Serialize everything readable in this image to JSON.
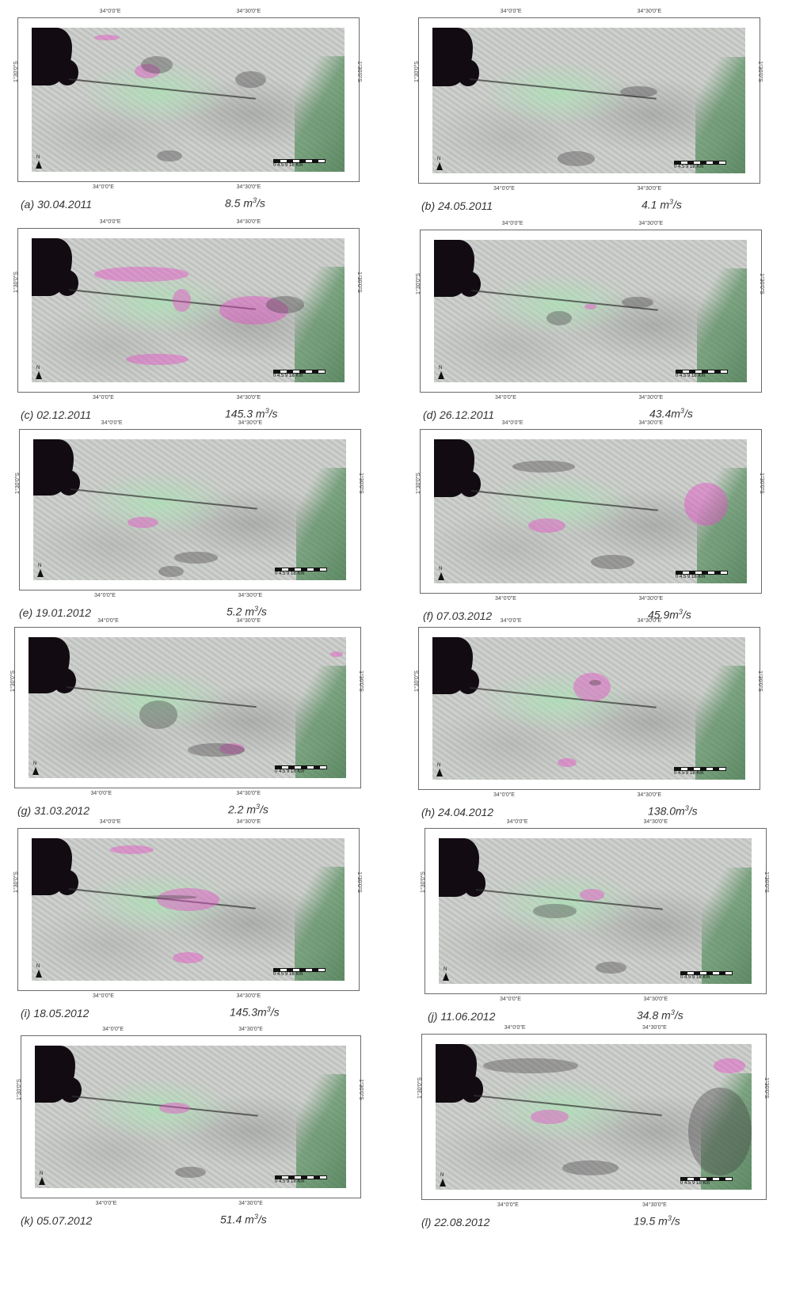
{
  "axis_labels": {
    "lon_left": "34°0'0\"E",
    "lon_right": "34°30'0\"E",
    "lat": "1°30'0\"S",
    "north": "N",
    "scale": "0  4.5  9        18 Km"
  },
  "panels": [
    {
      "label": "(a) 30.04.2011",
      "flow": "8.5 m",
      "flow_unit": "3",
      "flow_tail": "/s"
    },
    {
      "label": "(b) 24.05.2011",
      "flow": "4.1 m",
      "flow_unit": "3",
      "flow_tail": "/s"
    },
    {
      "label": "(c) 02.12.2011",
      "flow": "145.3 m",
      "flow_unit": "3",
      "flow_tail": "/s"
    },
    {
      "label": "(d) 26.12.2011",
      "flow": "43.4m",
      "flow_unit": "3",
      "flow_tail": "/s"
    },
    {
      "label": "(e) 19.01.2012",
      "flow": "5.2 m",
      "flow_unit": "3",
      "flow_tail": "/s"
    },
    {
      "label": "(f)   07.03.2012",
      "flow": "45.9m",
      "flow_unit": "3",
      "flow_tail": "/s"
    },
    {
      "label": "(g) 31.03.2012",
      "flow": "2.2 m",
      "flow_unit": "3",
      "flow_tail": "/s"
    },
    {
      "label": "(h) 24.04.2012",
      "flow": "138.0m",
      "flow_unit": "3",
      "flow_tail": "/s"
    },
    {
      "label": "(i) 18.05.2012",
      "flow": "145.3m",
      "flow_unit": "3",
      "flow_tail": "/s"
    },
    {
      "label": "(j) 11.06.2012",
      "flow": "34.8 m",
      "flow_unit": "3",
      "flow_tail": "/s"
    },
    {
      "label": "(k) 05.07.2012",
      "flow": "51.4 m",
      "flow_unit": "3",
      "flow_tail": "/s"
    },
    {
      "label": "(l) 22.08.2012",
      "flow": "19.5 m",
      "flow_unit": "3",
      "flow_tail": "/s"
    }
  ]
}
